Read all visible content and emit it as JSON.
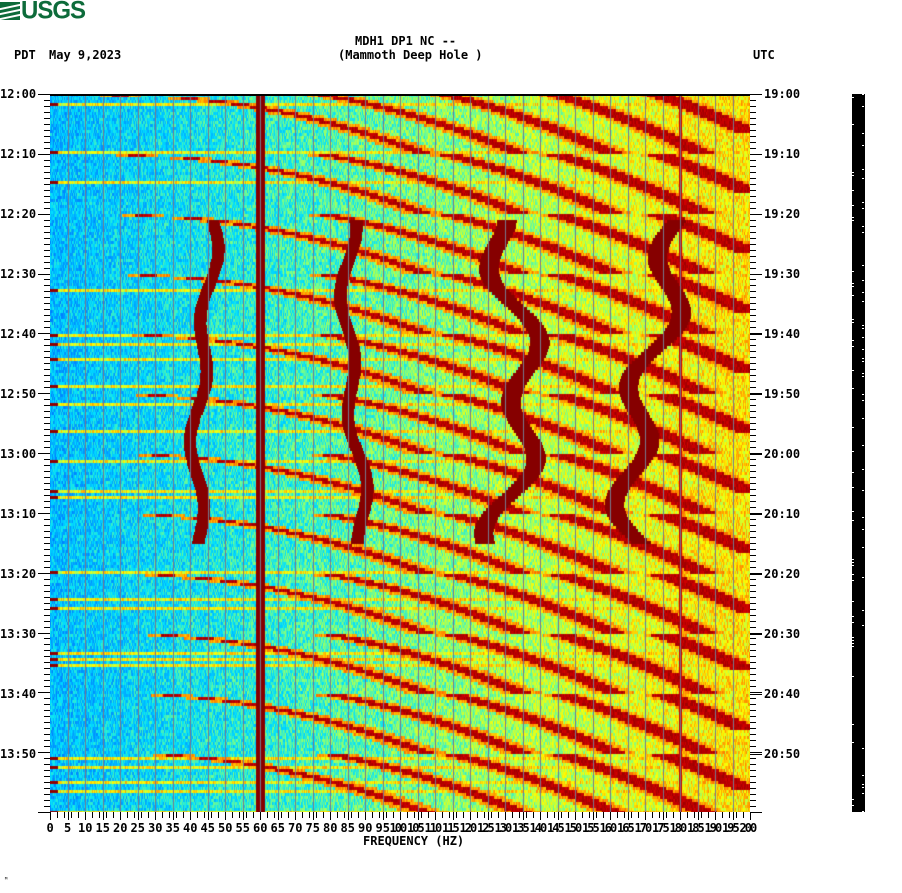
{
  "logo": {
    "text": "USGS",
    "color": "#0d6b3a",
    "icon": "usgs-waves-icon"
  },
  "header": {
    "station": "MDH1 DP1 NC --",
    "location": "(Mammoth Deep Hole )",
    "left_tz": "PDT",
    "date": "May 9,2023",
    "right_tz": "UTC"
  },
  "footer_mark": "ᴹ",
  "chart_data": {
    "type": "heatmap",
    "title": "MDH1 DP1 NC -- (Mammoth Deep Hole )",
    "subtitle": "May 9,2023",
    "xlabel": "FREQUENCY (HZ)",
    "ylabel_left": "PDT",
    "ylabel_right": "UTC",
    "xlim": [
      0,
      200
    ],
    "x_ticks": [
      0,
      5,
      10,
      15,
      20,
      25,
      30,
      35,
      40,
      45,
      50,
      55,
      60,
      65,
      70,
      75,
      80,
      85,
      90,
      95,
      100,
      105,
      110,
      115,
      120,
      125,
      130,
      135,
      140,
      145,
      150,
      155,
      160,
      165,
      170,
      175,
      180,
      185,
      190,
      195,
      200
    ],
    "x_tick_labels": [
      "0",
      "5",
      "10",
      "15",
      "20",
      "25",
      "30",
      "35",
      "40",
      "45",
      "50",
      "55",
      "60",
      "65",
      "70",
      "75",
      "80",
      "85",
      "90",
      "95",
      "100",
      "105",
      "110",
      "115",
      "120",
      "125",
      "130",
      "135",
      "140",
      "145",
      "150",
      "155",
      "160",
      "165",
      "170",
      "175",
      "180",
      "185",
      "190",
      "195",
      "200"
    ],
    "y_range_pdt": [
      "12:00",
      "14:00"
    ],
    "y_ticks_left": [
      "12:00",
      "12:10",
      "12:20",
      "12:30",
      "12:40",
      "12:50",
      "13:00",
      "13:10",
      "13:20",
      "13:30",
      "13:40",
      "13:50"
    ],
    "y_ticks_right": [
      "19:00",
      "19:10",
      "19:20",
      "19:30",
      "19:40",
      "19:50",
      "20:00",
      "20:10",
      "20:20",
      "20:30",
      "20:40",
      "20:50"
    ],
    "minor_tick_interval_min": 1,
    "colormap": [
      "#0030ff",
      "#0090ff",
      "#00e0ff",
      "#80ff80",
      "#ffff00",
      "#ff8000",
      "#d00000",
      "#800000"
    ],
    "persistent_lines_hz": [
      60,
      180
    ],
    "tremor_tracks": [
      {
        "center_hz": 44,
        "start": "12:21",
        "end": "13:15"
      },
      {
        "center_hz": 87,
        "start": "12:21",
        "end": "13:15"
      },
      {
        "center_hz": 130,
        "start": "12:21",
        "end": "13:15"
      },
      {
        "center_hz": 172,
        "start": "12:21",
        "end": "13:15"
      }
    ],
    "chirp_sweeps_note": "Repeating curved sweeps from ~20 Hz rising diagonally to the right, periodic ~10-minute spacing",
    "grid": true,
    "grid_spacing_hz": 5
  }
}
